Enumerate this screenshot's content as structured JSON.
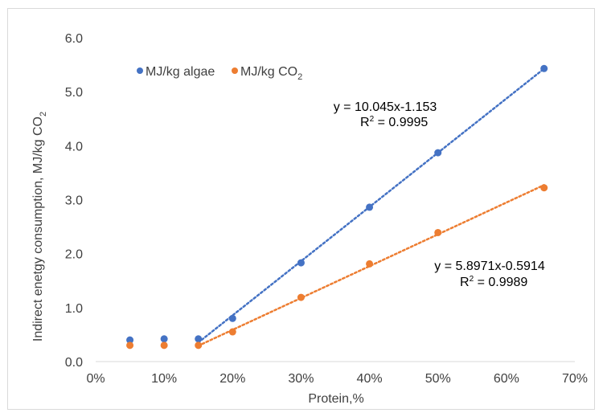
{
  "chart_data": {
    "type": "scatter",
    "title": "",
    "xlabel": "Protein,%",
    "ylabel": "Indirect enetgy consumption, MJ/kg CO",
    "ylabel_subscript": "2",
    "xlim": [
      0,
      0.7
    ],
    "ylim": [
      0,
      6
    ],
    "x_ticks": [
      0,
      0.1,
      0.2,
      0.3,
      0.4,
      0.5,
      0.6,
      0.7
    ],
    "x_tick_labels": [
      "0%",
      "10%",
      "20%",
      "30%",
      "40%",
      "50%",
      "60%",
      "70%"
    ],
    "y_ticks": [
      0,
      1,
      2,
      3,
      4,
      5,
      6
    ],
    "y_tick_labels": [
      "0.0",
      "1.0",
      "2.0",
      "3.0",
      "4.0",
      "5.0",
      "6.0"
    ],
    "grid": false,
    "legend_position": "top-left",
    "series": [
      {
        "name": "MJ/kg algae",
        "color": "#4472c4",
        "x": [
          0.05,
          0.1,
          0.15,
          0.2,
          0.3,
          0.4,
          0.5,
          0.655
        ],
        "y": [
          0.4,
          0.42,
          0.42,
          0.8,
          1.83,
          2.86,
          3.87,
          5.43
        ],
        "trendline": {
          "x_from": 0.15,
          "x_to": 0.655,
          "slope": 10.045,
          "intercept": -1.153
        },
        "equation": "y = 10.045x-1.153",
        "r2_label": "R",
        "r2_value": " = 0.9995"
      },
      {
        "name": "MJ/kg CO",
        "name_subscript": "2",
        "color": "#ed7d31",
        "x": [
          0.05,
          0.1,
          0.15,
          0.2,
          0.3,
          0.4,
          0.5,
          0.655
        ],
        "y": [
          0.3,
          0.3,
          0.3,
          0.55,
          1.19,
          1.81,
          2.39,
          3.22
        ],
        "trendline": {
          "x_from": 0.15,
          "x_to": 0.655,
          "slope": 5.8971,
          "intercept": -0.5914
        },
        "equation": "y = 5.8971x-0.5914",
        "r2_label": "R",
        "r2_value": " = 0.9989"
      }
    ]
  }
}
